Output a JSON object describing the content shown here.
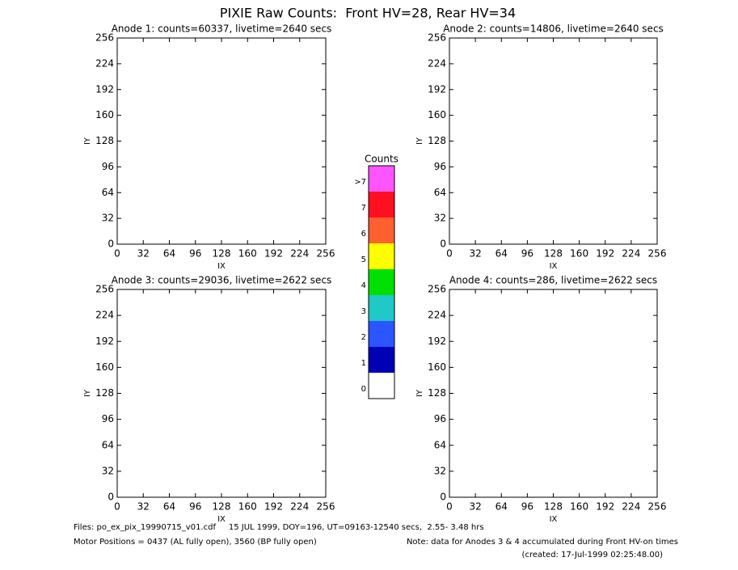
{
  "title": "PIXIE Raw Counts:  Front HV=28, Rear HV=34",
  "chart_data": [
    {
      "type": "heatmap",
      "title": "Anode 1: counts=60337, livetime=2640 secs",
      "xlabel": "IX",
      "ylabel": "IY",
      "xlim": [
        0,
        256
      ],
      "ylim": [
        0,
        256
      ],
      "xticks": [
        0,
        32,
        64,
        96,
        128,
        160,
        192,
        224,
        256
      ],
      "yticks": [
        0,
        32,
        64,
        96,
        128,
        160,
        192,
        224,
        256
      ]
    },
    {
      "type": "heatmap",
      "title": "Anode 2: counts=14806, livetime=2640 secs",
      "xlabel": "IX",
      "ylabel": "IY",
      "xlim": [
        0,
        256
      ],
      "ylim": [
        0,
        256
      ],
      "xticks": [
        0,
        32,
        64,
        96,
        128,
        160,
        192,
        224,
        256
      ],
      "yticks": [
        0,
        32,
        64,
        96,
        128,
        160,
        192,
        224,
        256
      ]
    },
    {
      "type": "heatmap",
      "title": "Anode 3: counts=29036, livetime=2622 secs",
      "xlabel": "IX",
      "ylabel": "IY",
      "xlim": [
        0,
        256
      ],
      "ylim": [
        0,
        256
      ],
      "xticks": [
        0,
        32,
        64,
        96,
        128,
        160,
        192,
        224,
        256
      ],
      "yticks": [
        0,
        32,
        64,
        96,
        128,
        160,
        192,
        224,
        256
      ]
    },
    {
      "type": "heatmap",
      "title": "Anode 4: counts=286, livetime=2622 secs",
      "xlabel": "IX",
      "ylabel": "IY",
      "xlim": [
        0,
        256
      ],
      "ylim": [
        0,
        256
      ],
      "xticks": [
        0,
        32,
        64,
        96,
        128,
        160,
        192,
        224,
        256
      ],
      "yticks": [
        0,
        32,
        64,
        96,
        128,
        160,
        192,
        224,
        256
      ]
    }
  ],
  "colorbar": {
    "title": "Counts",
    "labels": [
      "0",
      "1",
      "2",
      "3",
      "4",
      "5",
      "6",
      "7",
      ">7"
    ],
    "colors": [
      "#ffffff",
      "#0000b4",
      "#2a55ff",
      "#20c8c8",
      "#00e000",
      "#ffff00",
      "#ff6030",
      "#ff1020",
      "#ff55ff"
    ]
  },
  "footer": {
    "files": "Files: po_ex_pix_19990715_v01.cdf     15 JUL 1999, DOY=196, UT=09163-12540 secs,  2.55- 3.48 hrs",
    "motor": "Motor Positions = 0437 (AL fully open), 3560 (BP fully open)",
    "note": "Note: data for Anodes 3 & 4 accumulated during Front HV-on times",
    "created": "(created: 17-Jul-1999 02:25:48.00)"
  }
}
